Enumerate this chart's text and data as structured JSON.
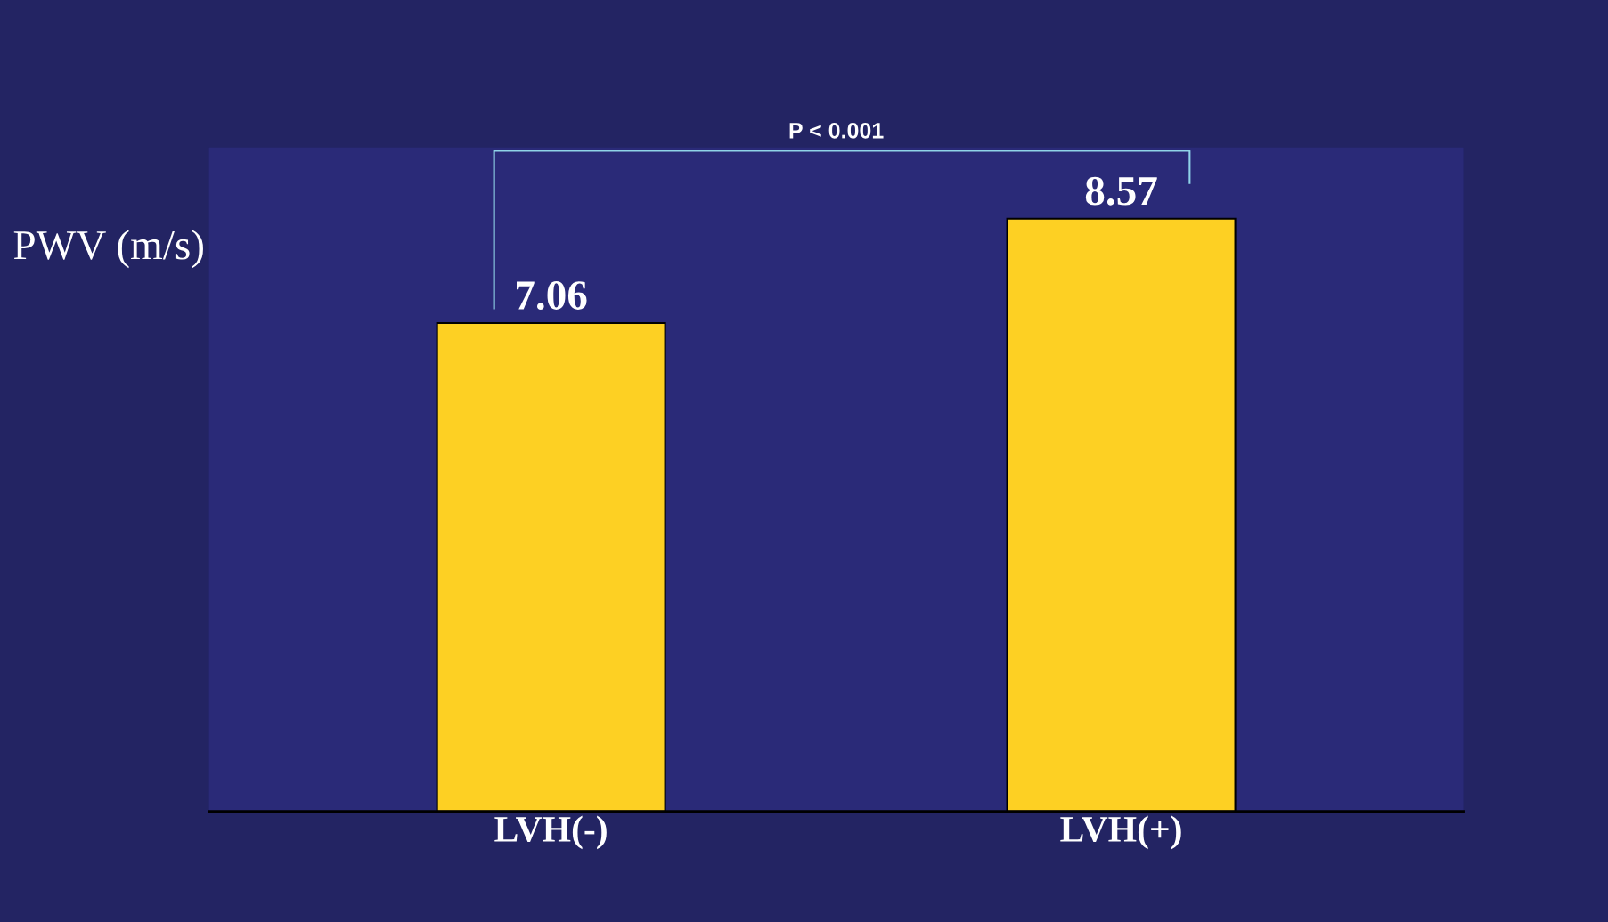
{
  "chart_data": {
    "type": "bar",
    "ylabel": "PWV (m/s)",
    "categories": [
      "LVH(-)",
      "LVH(+)"
    ],
    "values": [
      7.06,
      8.57
    ],
    "color": "#fdd023",
    "data_labels": true,
    "tick_labels": "x",
    "grid": false,
    "legend": false,
    "annotations": [
      "P < 0.001"
    ]
  }
}
